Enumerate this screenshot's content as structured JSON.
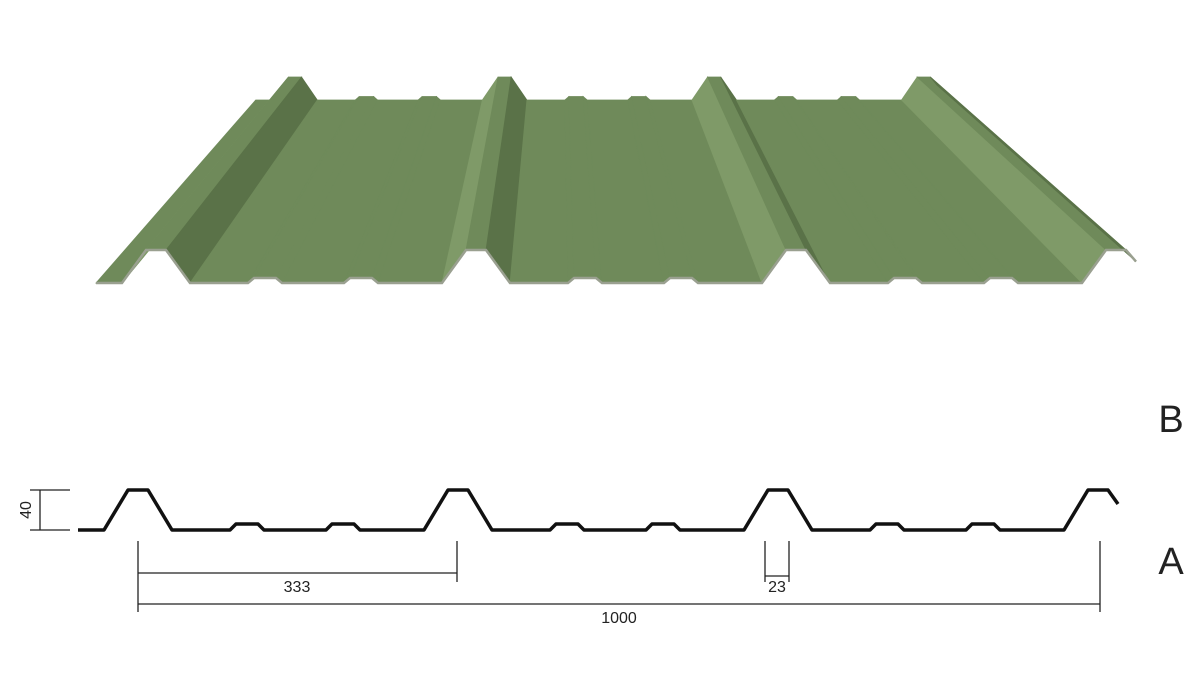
{
  "colors": {
    "sheet": "#6f8a5a",
    "sheet_light": "#7f9a68",
    "sheet_dark": "#5a7248",
    "edge": "#9aa090",
    "profile_line": "#111111"
  },
  "dimensions": {
    "height": "40",
    "crest_spacing": "333",
    "crest_width": "23",
    "cover_width": "1000"
  },
  "labels": {
    "b": "B",
    "a": "A"
  }
}
